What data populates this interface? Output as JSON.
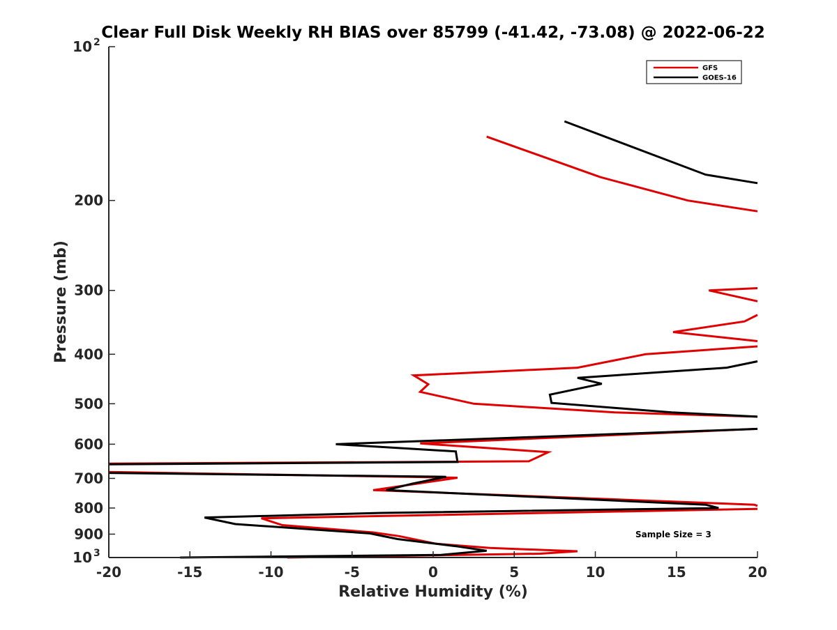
{
  "chart_data": {
    "type": "line",
    "title": "Clear Full Disk Weekly RH BIAS over 85799 (-41.42, -73.08) @ 2022-06-22",
    "xlabel": "Relative Humidity (%)",
    "ylabel": "Pressure (mb)",
    "xlim": [
      -20,
      20
    ],
    "ylim": [
      100,
      1000
    ],
    "yscale": "log",
    "y_reversed": true,
    "x_ticks": [
      "-20",
      "-15",
      "-10",
      "-5",
      "0",
      "5",
      "10",
      "15",
      "20"
    ],
    "y_ticks": [
      {
        "value": 100,
        "label": "10",
        "sup": "2"
      },
      {
        "value": 200,
        "label": "200",
        "sup": ""
      },
      {
        "value": 300,
        "label": "300",
        "sup": ""
      },
      {
        "value": 400,
        "label": "400",
        "sup": ""
      },
      {
        "value": 500,
        "label": "500",
        "sup": ""
      },
      {
        "value": 600,
        "label": "600",
        "sup": ""
      },
      {
        "value": 700,
        "label": "700",
        "sup": ""
      },
      {
        "value": 800,
        "label": "800",
        "sup": ""
      },
      {
        "value": 900,
        "label": "900",
        "sup": ""
      },
      {
        "value": 1000,
        "label": "10",
        "sup": "3"
      }
    ],
    "legend_position": "top-right",
    "annotation": "Sample Size = 3",
    "series": [
      {
        "name": "GFS",
        "color": "#e00000",
        "segments": [
          [
            [
              3.3,
              150
            ],
            [
              10.3,
              180
            ],
            [
              15.7,
              200
            ],
            [
              20,
              210
            ]
          ],
          [
            [
              20,
              297
            ],
            [
              17,
              300
            ],
            [
              20,
              315
            ]
          ],
          [
            [
              20,
              335
            ],
            [
              19.2,
              345
            ],
            [
              14.8,
              362
            ],
            [
              20,
              377
            ]
          ],
          [
            [
              20,
              386
            ],
            [
              13.1,
              400
            ],
            [
              8.9,
              425
            ],
            [
              -1.2,
              440
            ],
            [
              -0.3,
              458
            ],
            [
              -0.8,
              474
            ],
            [
              2.5,
              500
            ],
            [
              11.2,
              520
            ],
            [
              20,
              530
            ]
          ],
          [
            [
              20,
              560
            ],
            [
              -0.8,
              598
            ],
            [
              7.1,
              622
            ],
            [
              5.9,
              648
            ],
            [
              -20,
              655
            ]
          ],
          [
            [
              -20,
              680
            ],
            [
              1.5,
              698
            ],
            [
              -3.7,
              738
            ],
            [
              19.8,
              788
            ],
            [
              20,
              792
            ]
          ],
          [
            [
              20,
              803
            ],
            [
              -10.6,
              838
            ],
            [
              -9.3,
              864
            ],
            [
              -3.7,
              893
            ],
            [
              -2.1,
              908
            ],
            [
              0.2,
              940
            ],
            [
              3.5,
              958
            ],
            [
              8.9,
              972
            ],
            [
              6.6,
              983
            ],
            [
              -9,
              1000
            ]
          ]
        ]
      },
      {
        "name": "GOES-16",
        "color": "#000000",
        "segments": [
          [
            [
              8.1,
              140
            ],
            [
              16.8,
              178
            ],
            [
              20,
              185
            ]
          ],
          [
            [
              20,
              413
            ],
            [
              18.1,
              425
            ],
            [
              8.9,
              445
            ],
            [
              10.4,
              457
            ],
            [
              7.2,
              480
            ],
            [
              7.3,
              498
            ],
            [
              14.7,
              520
            ],
            [
              20,
              530
            ]
          ],
          [
            [
              20,
              560
            ],
            [
              -6,
              600
            ],
            [
              1.4,
              620
            ],
            [
              1.5,
              650
            ],
            [
              -20,
              657
            ]
          ],
          [
            [
              -20,
              683
            ],
            [
              0.8,
              695
            ],
            [
              -1.3,
              717
            ],
            [
              -2.9,
              738
            ],
            [
              16.8,
              788
            ],
            [
              17.6,
              800
            ],
            [
              -3.2,
              818
            ],
            [
              -14.1,
              835
            ],
            [
              -12.2,
              860
            ],
            [
              -3.9,
              897
            ],
            [
              -2.2,
              920
            ],
            [
              1.4,
              950
            ],
            [
              3.3,
              970
            ],
            [
              0.5,
              988
            ],
            [
              -15.6,
              1000
            ]
          ]
        ]
      }
    ]
  }
}
